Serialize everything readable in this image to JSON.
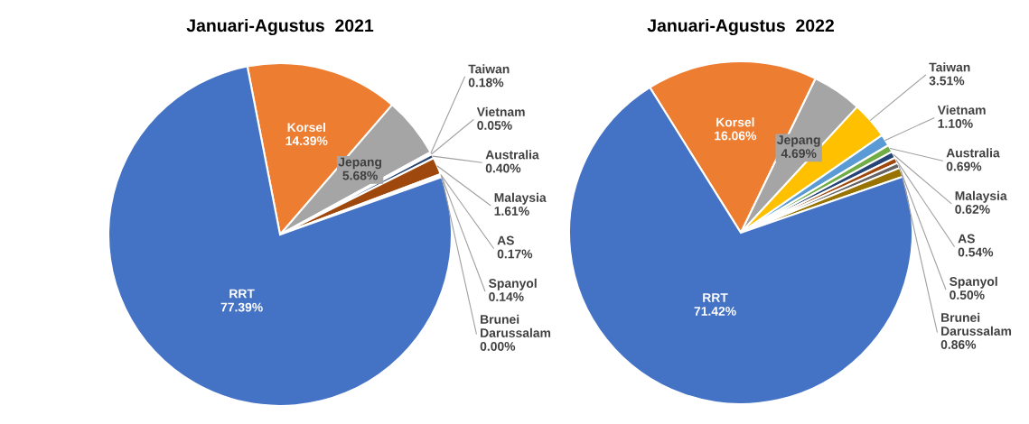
{
  "chart_data": [
    {
      "type": "pie",
      "title": "Januari-Agustus  2021",
      "value_labels": [
        "14.39%",
        "5.68%",
        "0.18%",
        "0.05%",
        "0.40%",
        "1.61%",
        "0.17%",
        "0.14%",
        "0.00%",
        "77.39%"
      ],
      "categories": [
        "Korsel",
        "Jepang",
        "Taiwan",
        "Vietnam",
        "Australia",
        "Malaysia",
        "AS",
        "Spanyol",
        "Brunei Darussalam",
        "RRT"
      ],
      "values": [
        14.39,
        5.68,
        0.18,
        0.05,
        0.4,
        1.61,
        0.17,
        0.14,
        0.0,
        77.39
      ],
      "colors": [
        "#ed7d31",
        "#a5a5a5",
        "#ffc000",
        "#5b9bd5",
        "#264478",
        "#9e480e",
        "#636363",
        "#997300",
        "#70ad47",
        "#4472c4"
      ]
    },
    {
      "type": "pie",
      "title": "Januari-Agustus  2022",
      "value_labels": [
        "16.06%",
        "4.69%",
        "3.51%",
        "1.10%",
        "0.69%",
        "0.62%",
        "0.54%",
        "0.50%",
        "0.86%",
        "71.42%"
      ],
      "categories": [
        "Korsel",
        "Jepang",
        "Taiwan",
        "Vietnam",
        "Australia",
        "Malaysia",
        "AS",
        "Spanyol",
        "Brunei Darussalam",
        "RRT"
      ],
      "values": [
        16.06,
        4.69,
        3.51,
        1.1,
        0.69,
        0.62,
        0.54,
        0.5,
        0.86,
        71.42
      ],
      "colors": [
        "#ed7d31",
        "#a5a5a5",
        "#ffc000",
        "#5b9bd5",
        "#70ad47",
        "#264478",
        "#9e480e",
        "#636363",
        "#997300",
        "#4472c4"
      ]
    }
  ]
}
